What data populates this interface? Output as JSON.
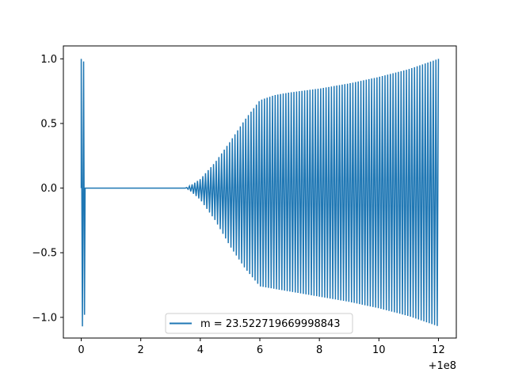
{
  "chart_data": {
    "type": "line",
    "title": "",
    "xlabel": "",
    "ylabel": "",
    "x_offset_label": "+1e8",
    "xlim": [
      -0.6,
      12.6
    ],
    "ylim": [
      -1.16,
      1.1
    ],
    "x_ticks": [
      0,
      2,
      4,
      6,
      8,
      10,
      12
    ],
    "x_tick_labels": [
      "0",
      "2",
      "4",
      "6",
      "8",
      "10",
      "12"
    ],
    "y_ticks": [
      -1.0,
      -0.5,
      0.0,
      0.5,
      1.0
    ],
    "y_tick_labels": [
      "−1.0",
      "−0.5",
      "0.0",
      "0.5",
      "1.0"
    ],
    "grid": false,
    "legend_position": "lower center",
    "color": "#1f77b4",
    "series": [
      {
        "name": "m = 23.522719669998843",
        "envelope_pos": [
          [
            0.0,
            1.0
          ],
          [
            0.05,
            0.99
          ],
          [
            0.1,
            0.98
          ],
          [
            0.12,
            0.0
          ],
          [
            3.5,
            0.0
          ],
          [
            3.6,
            0.01
          ],
          [
            4.0,
            0.07
          ],
          [
            4.5,
            0.2
          ],
          [
            5.0,
            0.36
          ],
          [
            5.5,
            0.53
          ],
          [
            6.0,
            0.68
          ],
          [
            6.5,
            0.72
          ],
          [
            7.0,
            0.74
          ],
          [
            8.0,
            0.77
          ],
          [
            9.0,
            0.81
          ],
          [
            10.0,
            0.86
          ],
          [
            11.0,
            0.92
          ],
          [
            12.0,
            1.0
          ]
        ],
        "envelope_neg": [
          [
            0.0,
            -1.07
          ],
          [
            0.05,
            -1.0
          ],
          [
            0.1,
            -0.98
          ],
          [
            0.12,
            0.0
          ],
          [
            3.5,
            0.0
          ],
          [
            3.6,
            -0.01
          ],
          [
            4.0,
            -0.09
          ],
          [
            4.5,
            -0.25
          ],
          [
            5.0,
            -0.45
          ],
          [
            5.5,
            -0.62
          ],
          [
            6.0,
            -0.76
          ],
          [
            6.5,
            -0.78
          ],
          [
            7.0,
            -0.8
          ],
          [
            8.0,
            -0.84
          ],
          [
            9.0,
            -0.88
          ],
          [
            10.0,
            -0.93
          ],
          [
            11.0,
            -0.99
          ],
          [
            12.0,
            -1.07
          ]
        ]
      }
    ]
  }
}
